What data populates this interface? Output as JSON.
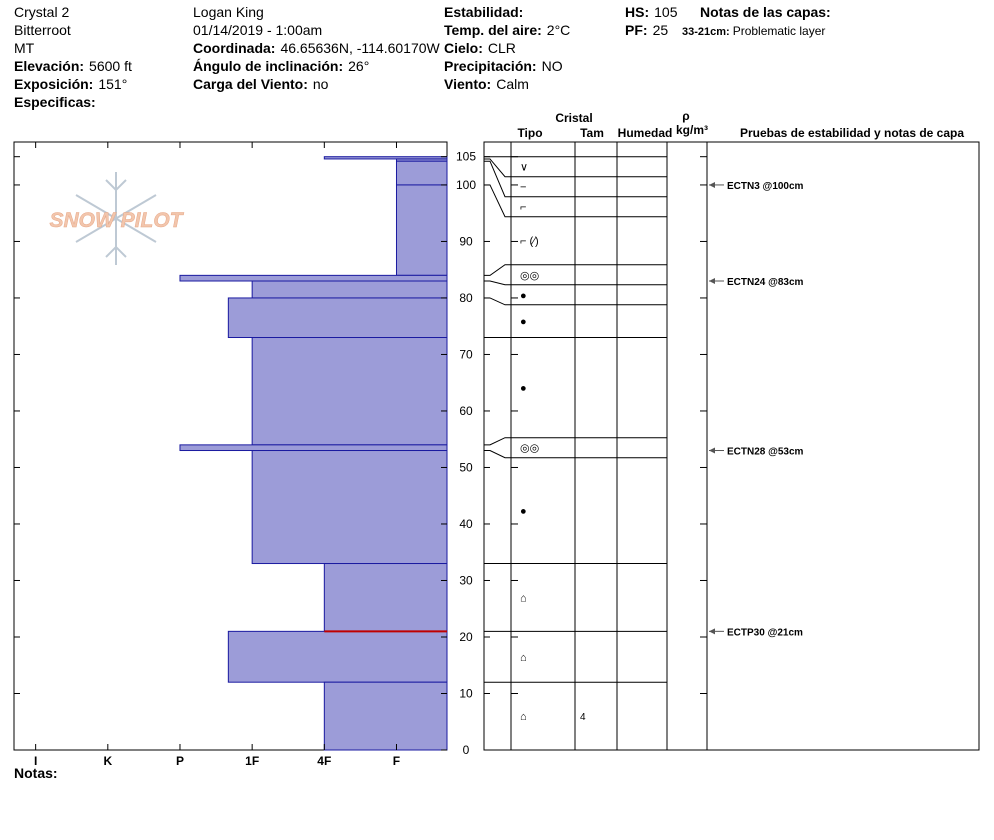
{
  "header": {
    "columns": [
      [
        {
          "value": "Crystal 2"
        },
        {
          "value": "Bitterroot"
        },
        {
          "value": "MT"
        },
        {
          "label": "Elevación:",
          "value": "5600 ft"
        },
        {
          "label": "Exposición:",
          "value": "151°"
        },
        {
          "label": "Especificas:"
        }
      ],
      [
        {
          "value": "Logan King"
        },
        {
          "value": "01/14/2019 - 1:00am"
        },
        {
          "label": "Coordinada:",
          "value": "46.65636N, -114.60170W"
        },
        {
          "label": "Ángulo de inclinación:",
          "value": "26°"
        },
        {
          "label": "Carga del Viento:",
          "value": "no"
        }
      ],
      [
        {
          "label": "Estabilidad:"
        },
        {
          "label": "Temp. del aire:",
          "value": "2°C"
        },
        {
          "label": "Cielo:",
          "value": "CLR"
        },
        {
          "label": "Precipitación:",
          "value": "NO"
        },
        {
          "label": "Viento:",
          "value": "Calm"
        }
      ],
      [
        {
          "label": "HS:",
          "value": "105"
        },
        {
          "label": "PF:",
          "value": "25"
        }
      ]
    ],
    "layer_notes_title": "Notas de las capas:",
    "layer_notes": [
      {
        "label": "33-21cm:",
        "value": "Problematic layer"
      }
    ]
  },
  "logo": "SNOW PILOT",
  "table_headers": {
    "crystal": "Cristal",
    "type": "Tipo",
    "size": "Tam",
    "moisture": "Humedad",
    "rho": "ρ",
    "density": "kg/m³",
    "tests": "Pruebas de estabilidad y notas de capa"
  },
  "footer": "Notas:",
  "chart_data": {
    "type": "hardness-profile",
    "color": "#9c9cd8",
    "edge_color": "#1a1aa0",
    "ylim": [
      0,
      107.6
    ],
    "yticks": [
      0,
      10,
      20,
      30,
      40,
      50,
      60,
      70,
      80,
      90,
      100,
      105
    ],
    "xlim": [
      6.3,
      0.3
    ],
    "xticks": [
      {
        "value": 6,
        "label": "I"
      },
      {
        "value": 5,
        "label": "K"
      },
      {
        "value": 4,
        "label": "P"
      },
      {
        "value": 3,
        "label": "1F"
      },
      {
        "value": 2,
        "label": "4F"
      },
      {
        "value": 1,
        "label": "F"
      }
    ],
    "layers": [
      {
        "top": 105,
        "bottom": 104.6,
        "hardness": 2,
        "crystal": "∨",
        "size": null
      },
      {
        "top": 104.6,
        "bottom": 104.2,
        "hardness": 1,
        "crystal": "−",
        "size": null
      },
      {
        "top": 104.2,
        "bottom": 100,
        "hardness": 1,
        "crystal": "⌐",
        "size": null
      },
      {
        "top": 100,
        "bottom": 84,
        "hardness": 1,
        "crystal": "⌐ (⁄)",
        "size": null
      },
      {
        "top": 84,
        "bottom": 83,
        "hardness": 4,
        "crystal": "◎◎",
        "size": null
      },
      {
        "top": 83,
        "bottom": 80,
        "hardness": 3,
        "crystal": "●",
        "size": null
      },
      {
        "top": 80,
        "bottom": 73,
        "hardness": 3.33,
        "crystal": "●",
        "size": null
      },
      {
        "top": 73,
        "bottom": 54,
        "hardness": 3,
        "crystal": "●",
        "size": null
      },
      {
        "top": 54,
        "bottom": 53,
        "hardness": 4,
        "crystal": "◎◎",
        "size": null
      },
      {
        "top": 53,
        "bottom": 33,
        "hardness": 3,
        "crystal": "●",
        "size": null
      },
      {
        "top": 33,
        "bottom": 21,
        "hardness": 2,
        "crystal": "⌂",
        "size": null
      },
      {
        "top": 21,
        "bottom": 12,
        "hardness": 3.33,
        "crystal": "⌂",
        "size": null
      },
      {
        "top": 12,
        "bottom": 0,
        "hardness": 2,
        "crystal": "⌂",
        "size": "4"
      }
    ],
    "concern": {
      "depth": 21,
      "color": "#c00000"
    },
    "tests": [
      {
        "label": "ECTN3 @100cm",
        "depth": 100
      },
      {
        "label": "ECTN24 @83cm",
        "depth": 83
      },
      {
        "label": "ECTN28 @53cm",
        "depth": 53
      },
      {
        "label": "ECTP30 @21cm",
        "depth": 21
      }
    ]
  }
}
